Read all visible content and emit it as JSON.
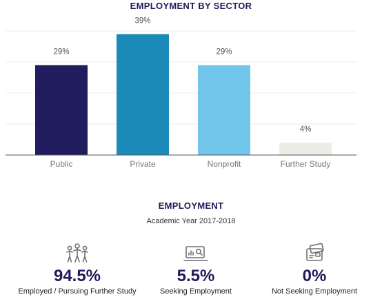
{
  "chart_data": {
    "type": "bar",
    "title": "EMPLOYMENT BY SECTOR",
    "categories": [
      "Public",
      "Private",
      "Nonprofit",
      "Further Study"
    ],
    "values": [
      29,
      39,
      29,
      4
    ],
    "value_labels": [
      "29%",
      "39%",
      "29%",
      "4%"
    ],
    "colors": [
      "#201c5e",
      "#1a8bb8",
      "#72c5ea",
      "#eeece7"
    ],
    "ylim": [
      0,
      40
    ],
    "grid": true,
    "xlabel": "",
    "ylabel": ""
  },
  "employment": {
    "title": "EMPLOYMENT",
    "subtitle": "Academic Year 2017-2018",
    "stats": [
      {
        "value": "94.5%",
        "label": "Employed / Pursuing Further Study",
        "icon": "people-group-icon"
      },
      {
        "value": "5.5%",
        "label": "Seeking Employment",
        "icon": "computer-search-icon"
      },
      {
        "value": "0%",
        "label": "Not Seeking Employment",
        "icon": "wallet-cards-icon"
      }
    ],
    "accent_color": "#1f1a5a"
  }
}
